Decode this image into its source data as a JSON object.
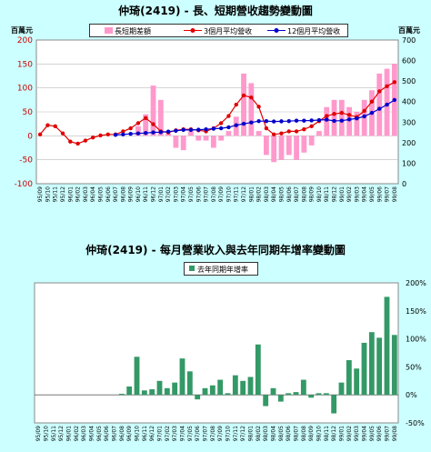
{
  "chart_data": [
    {
      "type": "bar",
      "title": "仲琦(2419) - 長、短期營收趨勢變動圖",
      "left_axis_unit": "百萬元",
      "right_axis_unit": "百萬元",
      "left_ylim": [
        -100,
        200
      ],
      "left_ticks": [
        "200",
        "150",
        "100",
        "50",
        "0",
        "-50",
        "-100"
      ],
      "right_ylim": [
        0,
        700
      ],
      "right_ticks": [
        "700",
        "600",
        "500",
        "400",
        "300",
        "200",
        "100",
        "0"
      ],
      "x": [
        "95/09",
        "95/10",
        "95/11",
        "95/12",
        "96/01",
        "96/02",
        "96/03",
        "96/04",
        "96/05",
        "96/06",
        "96/07",
        "96/08",
        "96/09",
        "96/10",
        "96/11",
        "96/12",
        "97/01",
        "97/02",
        "97/03",
        "97/04",
        "97/05",
        "97/06",
        "97/07",
        "97/08",
        "97/09",
        "97/10",
        "97/11",
        "97/12",
        "98/01",
        "98/02",
        "98/03",
        "98/04",
        "98/05",
        "98/06",
        "98/07",
        "98/08",
        "98/09",
        "98/10",
        "98/11",
        "98/12",
        "99/01",
        "99/02",
        "99/03",
        "99/04",
        "99/05",
        "99/06",
        "99/07",
        "99/08"
      ],
      "series": [
        {
          "name": "長短期差額",
          "axis": "left",
          "style": "bar",
          "color": "#ff99cc",
          "values": [
            0,
            0,
            0,
            0,
            0,
            0,
            0,
            0,
            0,
            0,
            0,
            0,
            0,
            20,
            45,
            105,
            75,
            5,
            -25,
            -30,
            10,
            -10,
            -10,
            -25,
            -10,
            10,
            40,
            130,
            110,
            10,
            -40,
            -55,
            -50,
            -40,
            -50,
            -35,
            -20,
            10,
            60,
            75,
            75,
            60,
            50,
            75,
            95,
            130,
            140,
            150
          ]
        },
        {
          "name": "3個月平均營收",
          "axis": "right",
          "style": "line",
          "color": "#e00000",
          "values": [
            240,
            285,
            280,
            245,
            205,
            195,
            210,
            225,
            235,
            240,
            240,
            255,
            270,
            295,
            320,
            290,
            255,
            250,
            260,
            265,
            265,
            260,
            255,
            270,
            295,
            330,
            385,
            430,
            420,
            375,
            270,
            240,
            245,
            255,
            255,
            265,
            280,
            305,
            330,
            340,
            345,
            335,
            325,
            355,
            400,
            450,
            475,
            495
          ]
        },
        {
          "name": "12個月平均營收",
          "axis": "right",
          "style": "line",
          "color": "#0000cc",
          "values": [
            null,
            null,
            null,
            null,
            null,
            null,
            null,
            null,
            null,
            null,
            238,
            240,
            243,
            245,
            247,
            250,
            251,
            254,
            258,
            262,
            262,
            263,
            265,
            268,
            270,
            275,
            285,
            292,
            298,
            305,
            305,
            303,
            304,
            305,
            307,
            307,
            308,
            310,
            312,
            306,
            307,
            313,
            318,
            328,
            345,
            365,
            385,
            408
          ]
        }
      ]
    },
    {
      "type": "bar",
      "title": "仲琦(2419) - 每月營業收入與去年同期年增率變動圖",
      "ylim": [
        -50,
        200
      ],
      "ticks": [
        "200%",
        "150%",
        "100%",
        "50%",
        "0%",
        "-50%"
      ],
      "x": [
        "95/09",
        "95/10",
        "95/11",
        "95/12",
        "96/01",
        "96/02",
        "96/03",
        "96/04",
        "96/05",
        "96/06",
        "96/07",
        "96/08",
        "96/09",
        "96/10",
        "96/11",
        "96/12",
        "97/01",
        "97/02",
        "97/03",
        "97/04",
        "97/05",
        "97/06",
        "97/07",
        "97/08",
        "97/09",
        "97/10",
        "97/11",
        "97/12",
        "98/01",
        "98/02",
        "98/03",
        "98/04",
        "98/05",
        "98/06",
        "98/07",
        "98/08",
        "98/09",
        "98/10",
        "98/11",
        "98/12",
        "99/01",
        "99/02",
        "99/03",
        "99/04",
        "99/05",
        "99/06",
        "99/07",
        "99/08"
      ],
      "series": [
        {
          "name": "去年同期年增率",
          "color": "#339966",
          "values": [
            0,
            0,
            0,
            0,
            0,
            0,
            0,
            0,
            0,
            0,
            0,
            2,
            15,
            68,
            8,
            10,
            25,
            12,
            22,
            65,
            42,
            -8,
            12,
            17,
            27,
            3,
            35,
            25,
            32,
            90,
            -20,
            12,
            -12,
            3,
            5,
            27,
            -5,
            3,
            3,
            -33,
            22,
            62,
            47,
            93,
            112,
            102,
            175,
            107
          ]
        }
      ]
    }
  ]
}
